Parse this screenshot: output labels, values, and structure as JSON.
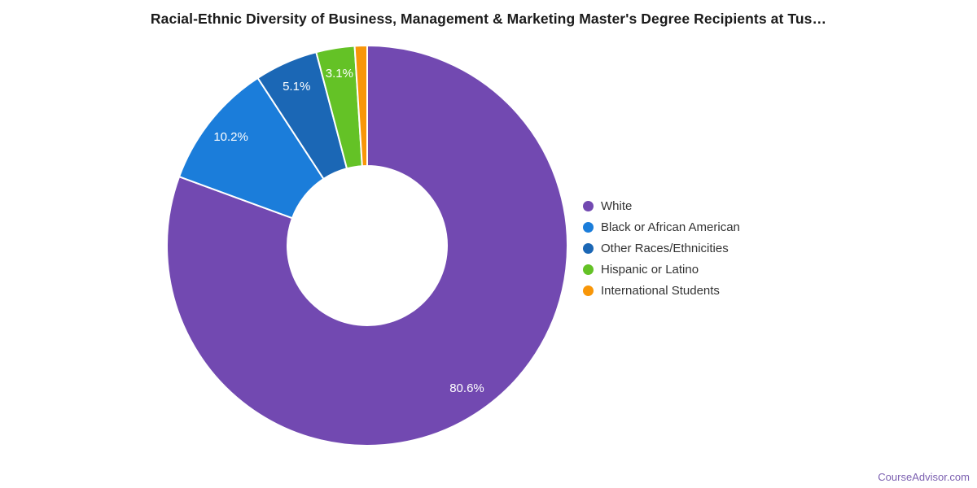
{
  "title": "Racial-Ethnic Diversity of Business, Management & Marketing Master's Degree Recipients at Tus…",
  "footer": {
    "text": "CourseAdvisor.com",
    "color": "#7B5FB0"
  },
  "chart_data": {
    "type": "pie",
    "donut": true,
    "title": "Racial-Ethnic Diversity of Business, Management & Marketing Master's Degree Recipients at Tus…",
    "legend_position": "right",
    "start_angle_deg": 0,
    "direction": "clockwise",
    "center": [
      451,
      302
    ],
    "outer_radius": 246,
    "inner_radius": 98,
    "label_radius": 214,
    "label_color": "#ffffff",
    "label_font_size": 15,
    "slice_border_color": "#ffffff",
    "slice_border_width": 2,
    "series": [
      {
        "label": "White",
        "value": 80.6,
        "data_label": "80.6%",
        "color": "#7249B1"
      },
      {
        "label": "Black or African American",
        "value": 10.2,
        "data_label": "10.2%",
        "color": "#1B7DDA"
      },
      {
        "label": "Other Races/Ethnicities",
        "value": 5.1,
        "data_label": "5.1%",
        "color": "#1B67B5"
      },
      {
        "label": "Hispanic or Latino",
        "value": 3.1,
        "data_label": "3.1%",
        "color": "#64C226"
      },
      {
        "label": "International Students",
        "value": 1.0,
        "data_label": null,
        "color": "#F89608"
      }
    ]
  }
}
